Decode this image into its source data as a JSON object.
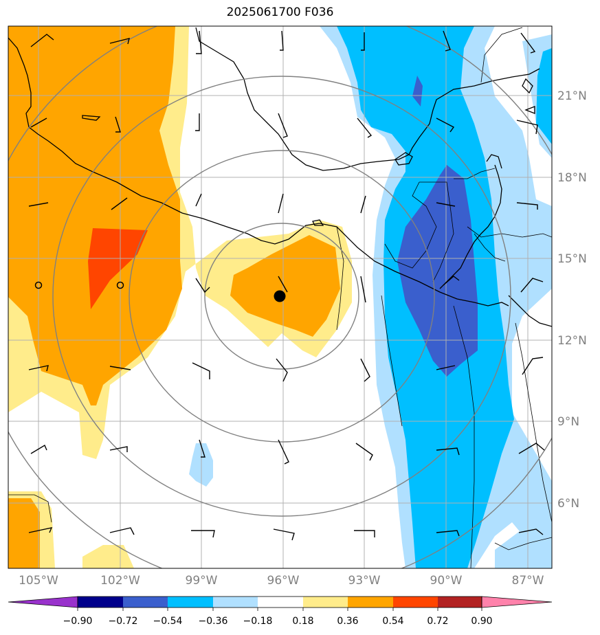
{
  "title": "2025061700 F036",
  "map": {
    "lat_labels": [
      "21°N",
      "18°N",
      "15°N",
      "12°N",
      "9°N",
      "6°N"
    ],
    "lon_labels": [
      "105°W",
      "102°W",
      "99°W",
      "96°W",
      "93°W",
      "90°W",
      "87°W"
    ],
    "extent": {
      "lon_min": "-106.1",
      "lon_max": "-86.2",
      "lat_min": "3.8",
      "lat_max": "23.7"
    },
    "center_marker": {
      "lon": -96.0,
      "lat": 13.6
    },
    "open_circle_markers": [
      {
        "lon": -105.0,
        "lat": 14.0
      },
      {
        "lon": -102.0,
        "lat": 14.0
      }
    ]
  },
  "colorbar": {
    "tick_labels": [
      "−0.90",
      "−0.72",
      "−0.54",
      "−0.36",
      "−0.18",
      "0.18",
      "0.36",
      "0.54",
      "0.72",
      "0.90"
    ],
    "colors": [
      "#9932CC",
      "#00008B",
      "#3A5FCD",
      "#00BFFF",
      "#B0E0FF",
      "#FFFFFF",
      "#FFEC8B",
      "#FFA500",
      "#FF4500",
      "#B22222",
      "#FF82AB"
    ]
  },
  "colors": {
    "orange": "#FFA500",
    "light_yellow": "#FFEC8B",
    "red_orange": "#FF4500",
    "royal_blue": "#3A5FCD",
    "deep_sky_blue": "#00BFFF",
    "light_blue": "#B0E0FF",
    "grid": "#B0B0B0",
    "range_rings": "#808080"
  }
}
